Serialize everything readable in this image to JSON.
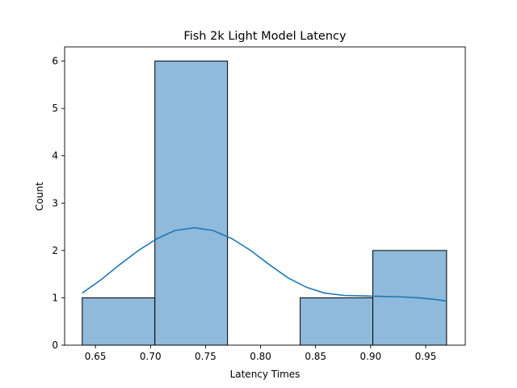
{
  "chart_data": {
    "type": "bar",
    "subtype": "histogram-with-kde",
    "title": "Fish 2k Light Model Latency",
    "xlabel": "Latency Times",
    "ylabel": "Count",
    "xlim": [
      0.622,
      0.986
    ],
    "ylim": [
      0,
      6.3
    ],
    "x_ticks": [
      0.65,
      0.7,
      0.75,
      0.8,
      0.85,
      0.9,
      0.95
    ],
    "x_tick_labels": [
      "0.65",
      "0.70",
      "0.75",
      "0.80",
      "0.85",
      "0.90",
      "0.95"
    ],
    "y_ticks": [
      0,
      1,
      2,
      3,
      4,
      5,
      6
    ],
    "y_tick_labels": [
      "0",
      "1",
      "2",
      "3",
      "4",
      "5",
      "6"
    ],
    "bins": [
      {
        "x0": 0.638,
        "x1": 0.704,
        "count": 1
      },
      {
        "x0": 0.704,
        "x1": 0.77,
        "count": 6
      },
      {
        "x0": 0.77,
        "x1": 0.836,
        "count": 0
      },
      {
        "x0": 0.836,
        "x1": 0.902,
        "count": 1
      },
      {
        "x0": 0.902,
        "x1": 0.969,
        "count": 2
      }
    ],
    "kde": {
      "x": [
        0.638,
        0.655,
        0.672,
        0.689,
        0.706,
        0.722,
        0.74,
        0.757,
        0.774,
        0.791,
        0.808,
        0.825,
        0.842,
        0.858,
        0.876,
        0.893,
        0.91,
        0.927,
        0.944,
        0.961,
        0.969
      ],
      "y": [
        1.1,
        1.38,
        1.7,
        2.0,
        2.25,
        2.42,
        2.48,
        2.42,
        2.25,
        2.0,
        1.7,
        1.42,
        1.22,
        1.1,
        1.05,
        1.04,
        1.03,
        1.02,
        1.0,
        0.96,
        0.93
      ]
    },
    "bar_color": "#8fbadb",
    "bar_edge_color": "#000000",
    "line_color": "#1f77b4",
    "grid": false,
    "legend": "none"
  }
}
